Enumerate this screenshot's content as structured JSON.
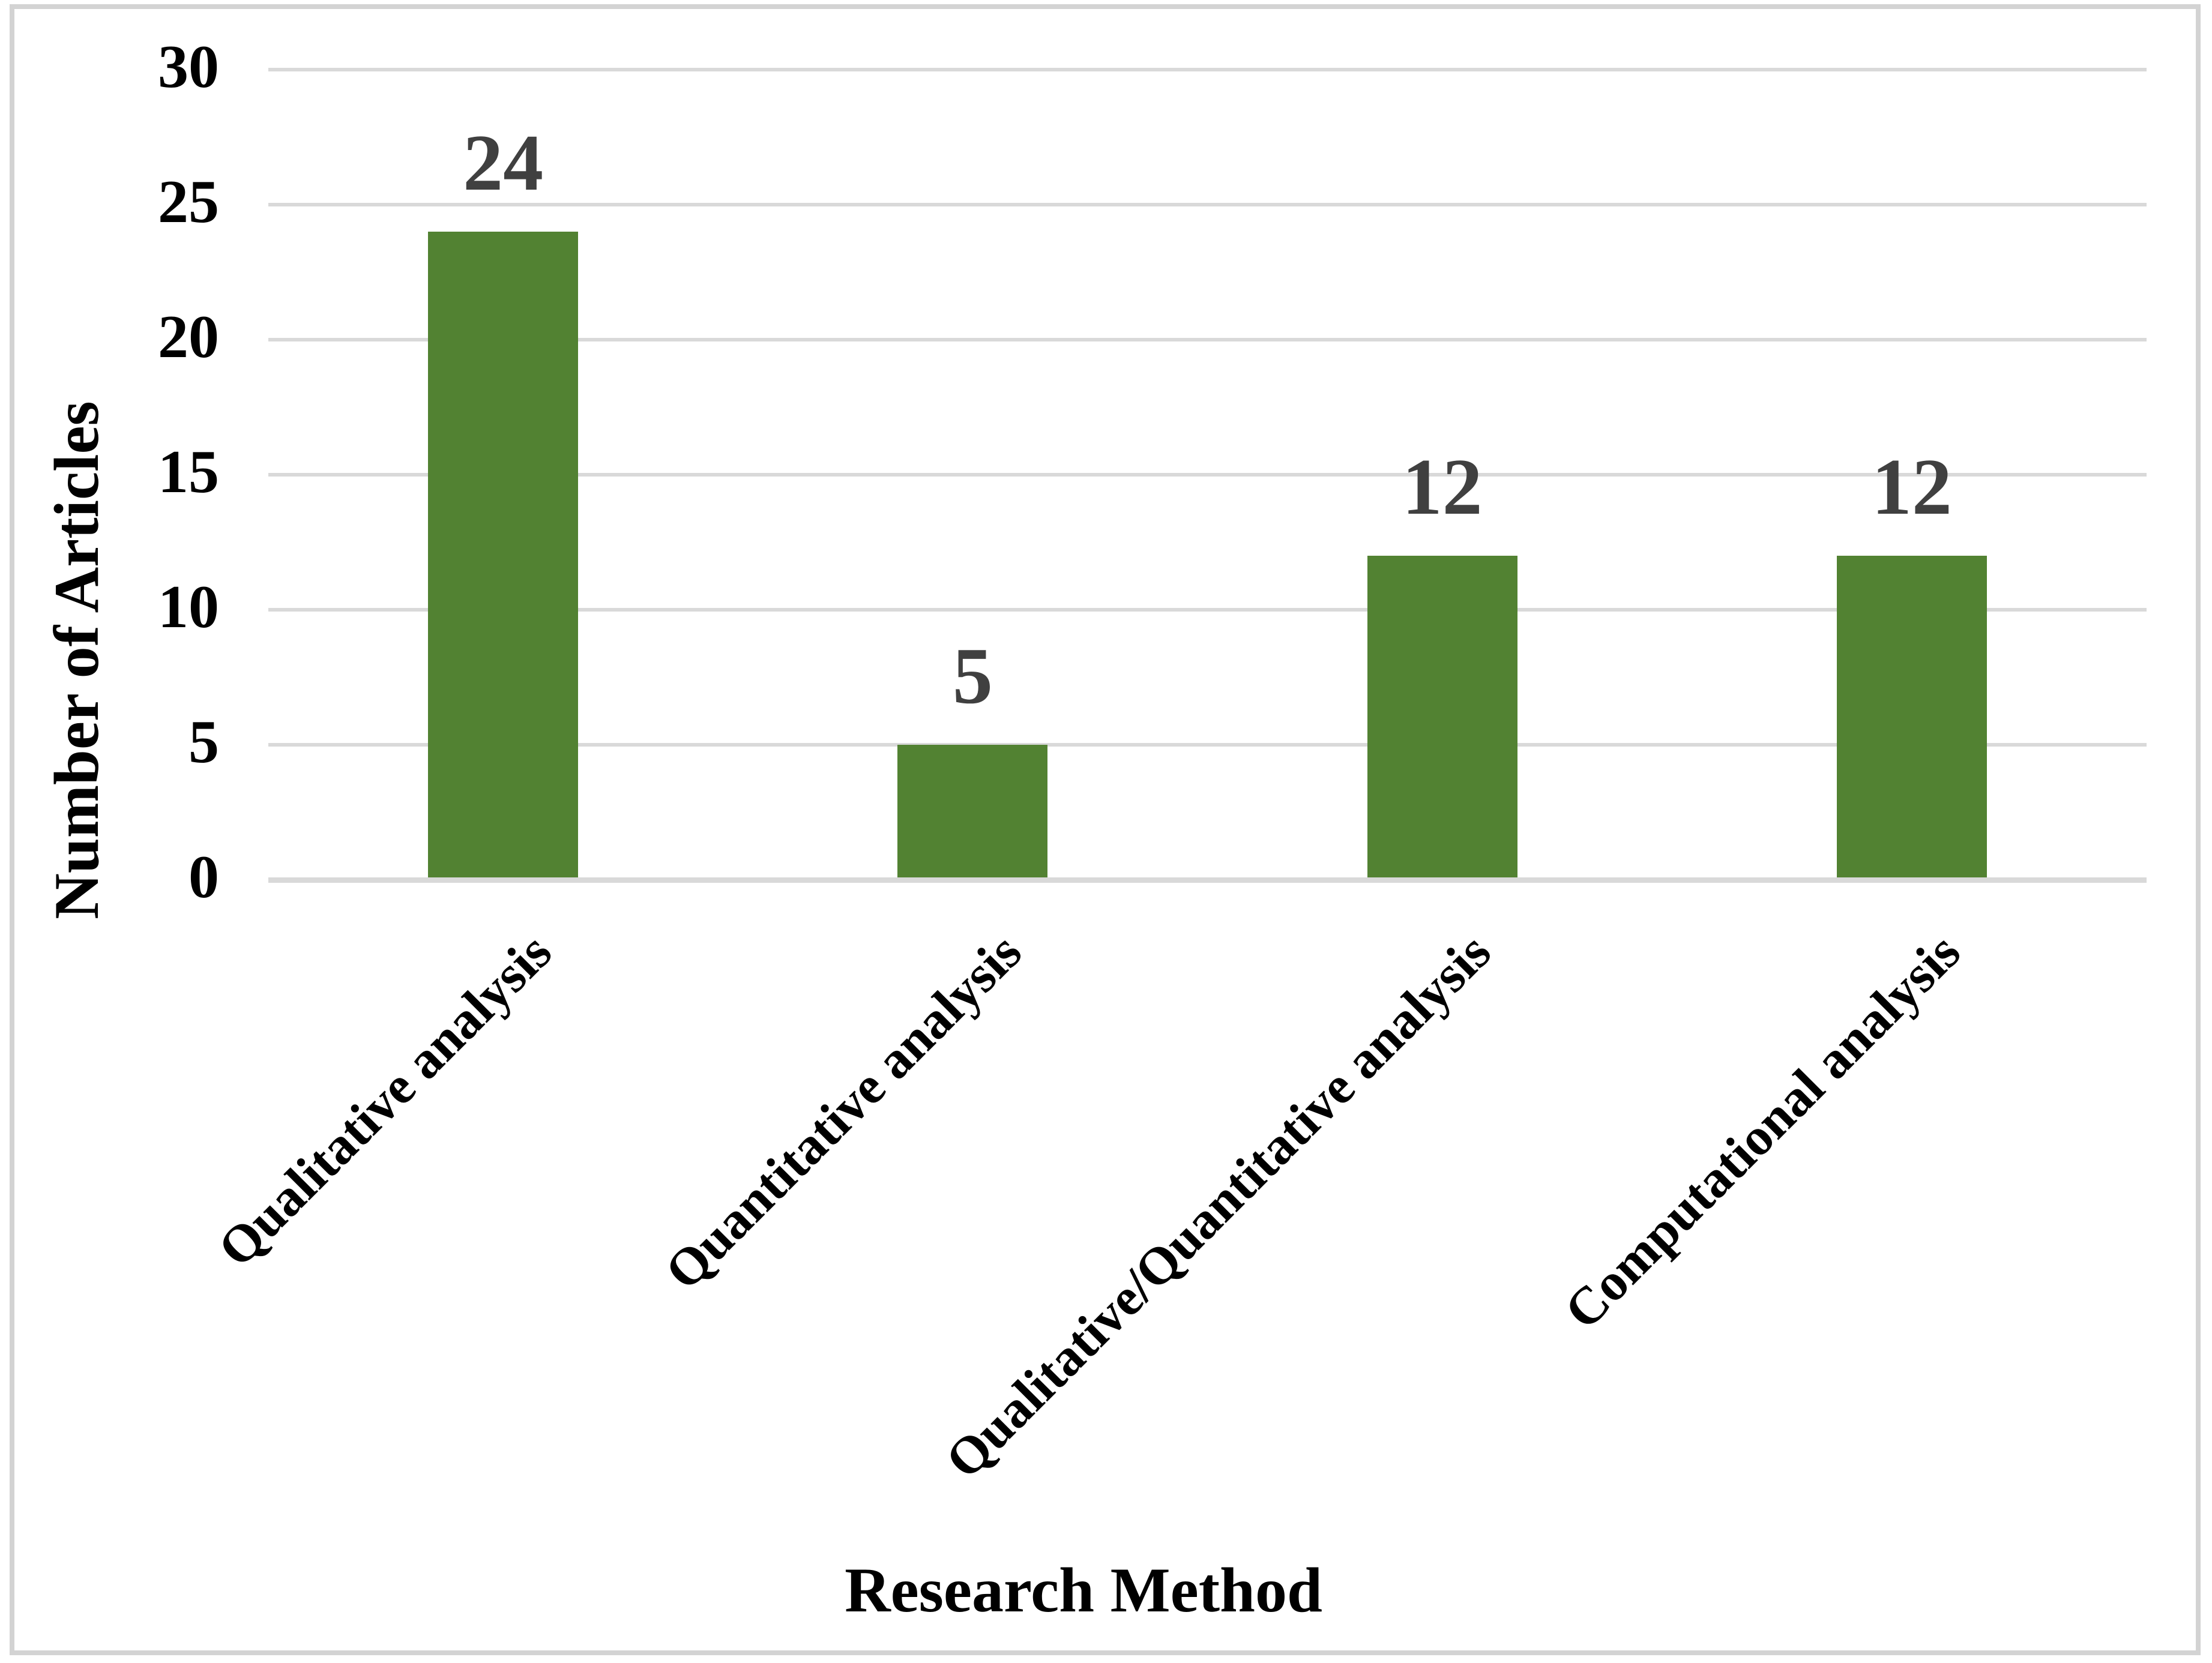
{
  "chart_data": {
    "type": "bar",
    "title": "",
    "categories": [
      "Qualitative analysis",
      "Quantitative analysis",
      "Qualitative/Quantitative analysis",
      "Computational analysis"
    ],
    "values": [
      24,
      5,
      12,
      12
    ],
    "data_labels": [
      "24",
      "5",
      "12",
      "12"
    ],
    "xlabel": "Research Method",
    "ylabel": "Number of Articles",
    "ylim": [
      0,
      30
    ],
    "yticks": [
      0,
      5,
      10,
      15,
      20,
      25,
      30
    ],
    "ytick_labels": [
      "0",
      "5",
      "10",
      "15",
      "20",
      "25",
      "30"
    ],
    "grid": true,
    "legend": "none",
    "bar_color": "#528232",
    "data_label_color": "#404040",
    "gridline_color": "#d9d9d9",
    "axis_line_color": "#d9d9d9",
    "frame_border_color": "#d3d3d3",
    "background_color": "#ffffff"
  }
}
